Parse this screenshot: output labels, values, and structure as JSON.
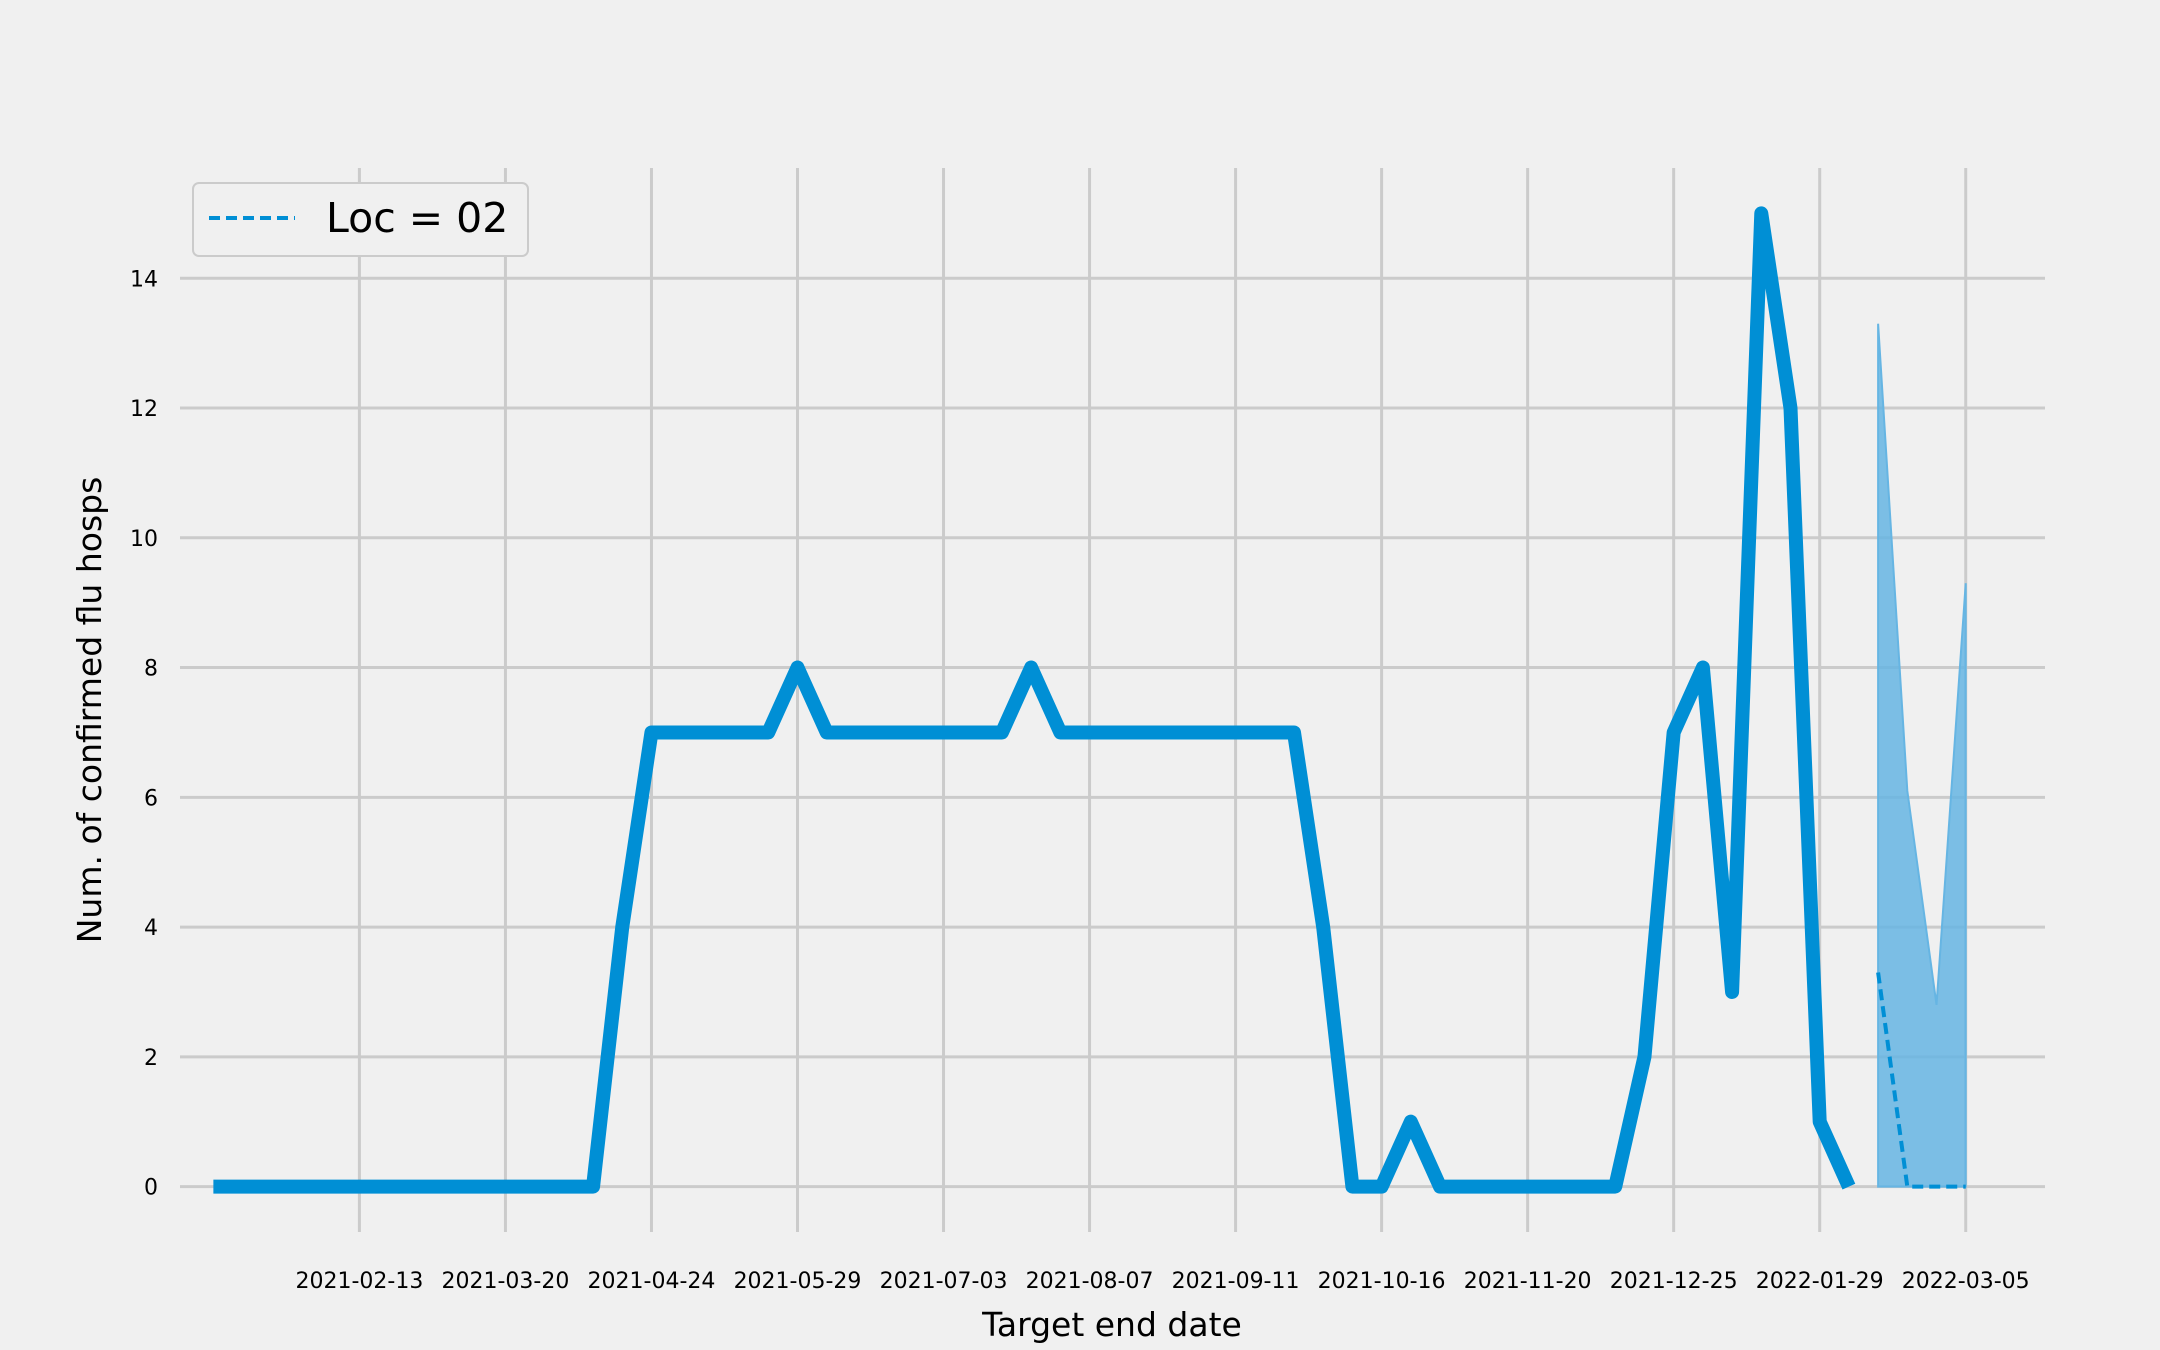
{
  "chart_data": {
    "type": "line",
    "title": "",
    "xlabel": "Target end date",
    "ylabel": "Num. of confirmed flu hosps",
    "x_ticks": [
      "2021-02-13",
      "2021-03-20",
      "2021-04-24",
      "2021-05-29",
      "2021-07-03",
      "2021-08-07",
      "2021-09-11",
      "2021-10-16",
      "2021-11-20",
      "2021-12-25",
      "2022-01-29",
      "2022-03-05"
    ],
    "y_ticks": [
      0,
      2,
      4,
      6,
      8,
      10,
      12,
      14
    ],
    "ylim": [
      -0.7,
      15.7
    ],
    "xlim": [
      "2021-01-01",
      "2022-03-24"
    ],
    "grid": true,
    "legend": {
      "position": "top-left",
      "entries": [
        "Loc = 02"
      ]
    },
    "colors": {
      "series": "#008fd5",
      "band": "#66b5e3",
      "grid": "#cbcbcb",
      "background": "#f0f0f0"
    },
    "series": [
      {
        "style": "solid",
        "x": [
          "2021-01-09",
          "2021-01-16",
          "2021-01-23",
          "2021-01-30",
          "2021-02-06",
          "2021-02-13",
          "2021-02-20",
          "2021-02-27",
          "2021-03-06",
          "2021-03-13",
          "2021-03-20",
          "2021-03-27",
          "2021-04-03",
          "2021-04-10",
          "2021-04-17",
          "2021-04-24",
          "2021-05-01",
          "2021-05-08",
          "2021-05-15",
          "2021-05-22",
          "2021-05-29",
          "2021-06-05",
          "2021-06-12",
          "2021-06-19",
          "2021-06-26",
          "2021-07-03",
          "2021-07-10",
          "2021-07-17",
          "2021-07-24",
          "2021-07-31",
          "2021-08-07",
          "2021-08-14",
          "2021-08-21",
          "2021-08-28",
          "2021-09-04",
          "2021-09-11",
          "2021-09-18",
          "2021-09-25",
          "2021-10-02",
          "2021-10-09",
          "2021-10-16",
          "2021-10-23",
          "2021-10-30",
          "2021-11-06",
          "2021-11-13",
          "2021-11-20",
          "2021-11-27",
          "2021-12-04",
          "2021-12-11",
          "2021-12-18",
          "2021-12-25",
          "2022-01-01",
          "2022-01-08",
          "2022-01-15",
          "2022-01-22",
          "2022-01-29",
          "2022-02-05"
        ],
        "values": [
          0,
          0,
          0,
          0,
          0,
          0,
          0,
          0,
          0,
          0,
          0,
          0,
          0,
          0,
          4,
          7,
          7,
          7,
          7,
          7,
          8,
          7,
          7,
          7,
          7,
          7,
          7,
          7,
          8,
          7,
          7,
          7,
          7,
          7,
          7,
          7,
          7,
          7,
          4,
          0,
          0,
          1,
          0,
          0,
          0,
          0,
          0,
          0,
          0,
          2,
          7,
          8,
          3,
          15,
          12,
          1,
          0
        ]
      },
      {
        "name": "Loc = 02",
        "style": "dashed",
        "x": [
          "2022-02-12",
          "2022-02-19",
          "2022-02-26",
          "2022-03-05"
        ],
        "values": [
          3.3,
          0,
          0,
          0
        ]
      }
    ],
    "interval": {
      "x": [
        "2022-02-12",
        "2022-02-19",
        "2022-02-26",
        "2022-03-05"
      ],
      "lower": [
        0,
        0,
        0,
        0
      ],
      "upper": [
        13.3,
        6.1,
        2.8,
        9.3
      ]
    }
  }
}
